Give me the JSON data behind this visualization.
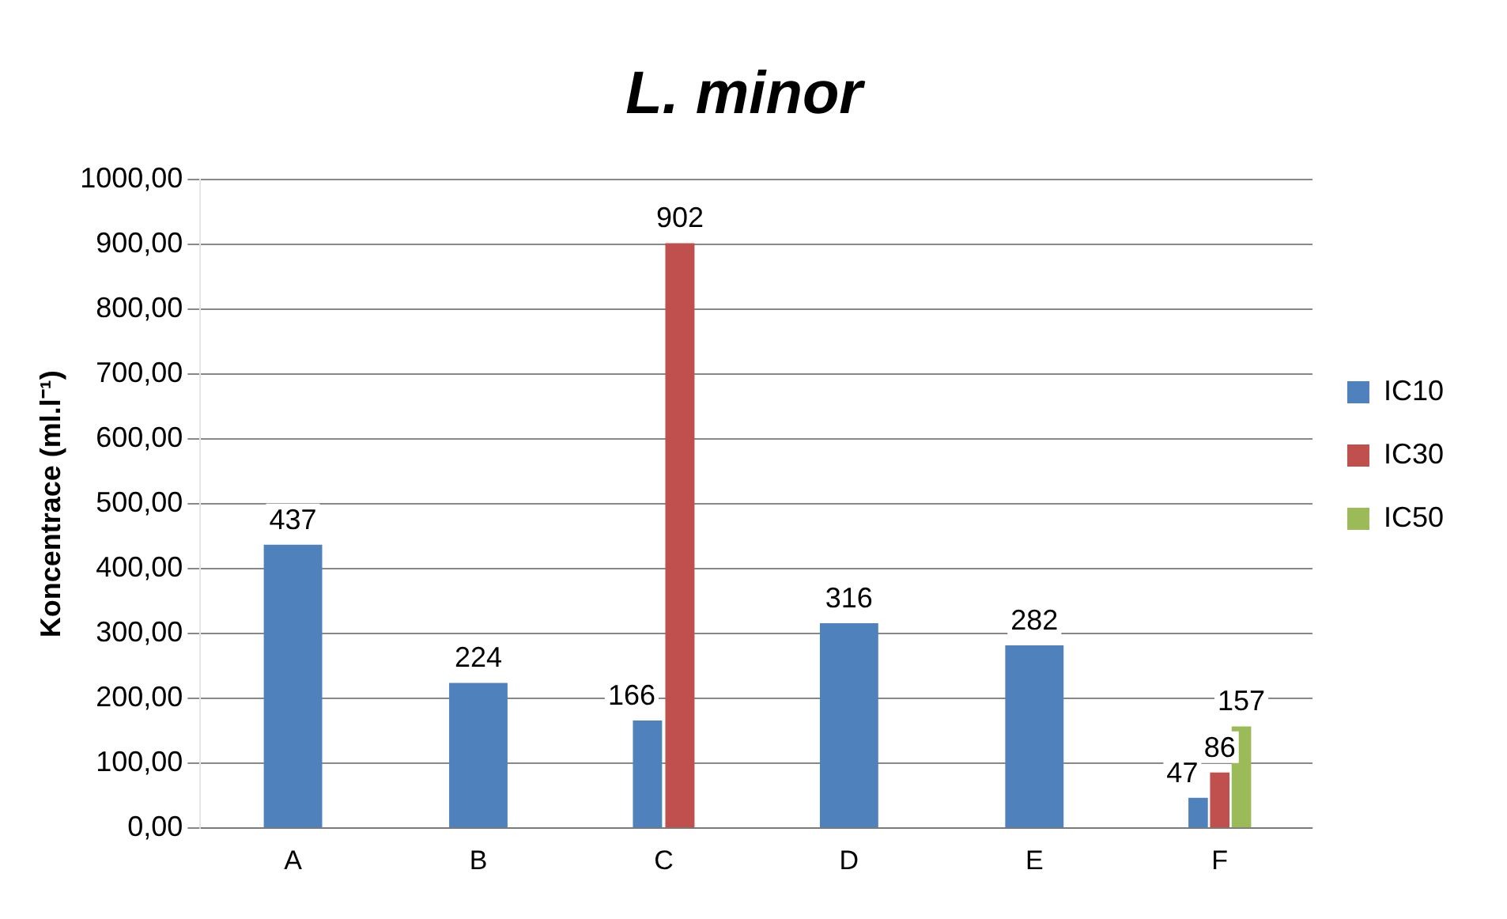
{
  "chart_data": {
    "type": "bar",
    "title": "L. minor",
    "ylabel": "Koncentrace (ml.l⁻¹)",
    "categories": [
      "A",
      "B",
      "C",
      "D",
      "E",
      "F"
    ],
    "series": [
      {
        "name": "IC10",
        "color": "#4f81bd",
        "values": [
          437,
          224,
          166,
          316,
          282,
          47
        ]
      },
      {
        "name": "IC30",
        "color": "#c0504d",
        "values": [
          null,
          null,
          902,
          null,
          null,
          86
        ]
      },
      {
        "name": "IC50",
        "color": "#9bbb59",
        "values": [
          null,
          null,
          null,
          null,
          null,
          157
        ]
      }
    ],
    "ylim": [
      0,
      1000
    ],
    "yticks": [
      {
        "value": 0,
        "label": "0,00"
      },
      {
        "value": 100,
        "label": "100,00"
      },
      {
        "value": 200,
        "label": "200,00"
      },
      {
        "value": 300,
        "label": "300,00"
      },
      {
        "value": 400,
        "label": "400,00"
      },
      {
        "value": 500,
        "label": "500,00"
      },
      {
        "value": 600,
        "label": "600,00"
      },
      {
        "value": 700,
        "label": "700,00"
      },
      {
        "value": 800,
        "label": "800,00"
      },
      {
        "value": 900,
        "label": "900,00"
      },
      {
        "value": 1000,
        "label": "1000,00"
      }
    ],
    "grid": "y",
    "legend": "right",
    "data_labels": true
  }
}
